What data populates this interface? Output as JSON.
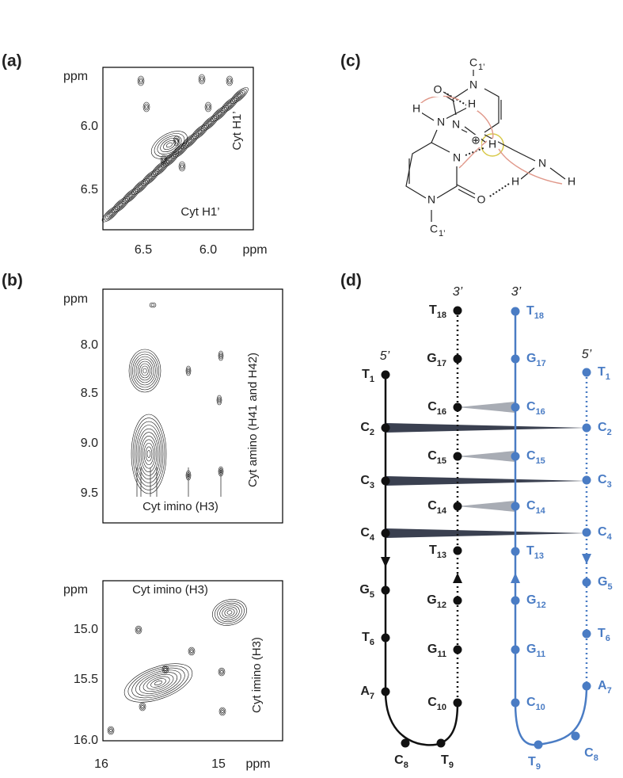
{
  "panels": {
    "a": {
      "label": "(a)",
      "y_unit": "ppm",
      "yticks": [
        "6.0",
        "6.5"
      ],
      "xticks": [
        "6.5",
        "6.0"
      ],
      "x_unit": "ppm",
      "x_annotation": "Cyt H1’",
      "y_annotation": "Cyt H1’"
    },
    "b": {
      "label": "(b)",
      "top": {
        "y_unit": "ppm",
        "yticks": [
          "8.0",
          "8.5",
          "9.0",
          "9.5"
        ],
        "x_annotation": "Cyt imino (H3)",
        "y_annotation": "Cyt amino (H41 and H42)"
      },
      "bottom": {
        "y_unit": "ppm",
        "yticks": [
          "15.0",
          "15.5",
          "16.0"
        ],
        "xticks": [
          "16",
          "15"
        ],
        "x_unit": "ppm",
        "x_annotation": "Cyt imino (H3)",
        "y_annotation": "Cyt imino (H3)"
      }
    },
    "c": {
      "label": "(c)",
      "atoms": [
        {
          "text": "C",
          "sub": "1’"
        },
        {
          "text": "O"
        },
        {
          "text": "N"
        },
        {
          "text": "N"
        },
        {
          "text": "⊕"
        },
        {
          "text": "H"
        },
        {
          "text": "N"
        },
        {
          "text": "H"
        },
        {
          "text": "H"
        },
        {
          "text": "N"
        },
        {
          "text": "N"
        },
        {
          "text": "H"
        },
        {
          "text": "H"
        },
        {
          "text": "O"
        },
        {
          "text": "N"
        },
        {
          "text": "C",
          "sub": "1’"
        }
      ]
    },
    "d": {
      "label": "(d)",
      "strands": [
        {
          "end_label": "5’",
          "nucleotides": [
            {
              "base": "T",
              "num": "1"
            },
            {
              "base": "C",
              "num": "2"
            },
            {
              "base": "C",
              "num": "3"
            },
            {
              "base": "C",
              "num": "4"
            },
            {
              "base": "G",
              "num": "5"
            },
            {
              "base": "T",
              "num": "6"
            },
            {
              "base": "A",
              "num": "7"
            },
            {
              "base": "C",
              "num": "8"
            }
          ]
        },
        {
          "end_label": "3’",
          "nucleotides": [
            {
              "base": "T",
              "num": "18"
            },
            {
              "base": "G",
              "num": "17"
            },
            {
              "base": "C",
              "num": "16"
            },
            {
              "base": "C",
              "num": "15"
            },
            {
              "base": "C",
              "num": "14"
            },
            {
              "base": "T",
              "num": "13"
            },
            {
              "base": "G",
              "num": "12"
            },
            {
              "base": "G",
              "num": "11"
            },
            {
              "base": "C",
              "num": "10"
            },
            {
              "base": "T",
              "num": "9"
            }
          ]
        },
        {
          "end_label": "3’",
          "nucleotides": [
            {
              "base": "T",
              "num": "18"
            },
            {
              "base": "G",
              "num": "17"
            },
            {
              "base": "C",
              "num": "16"
            },
            {
              "base": "C",
              "num": "15"
            },
            {
              "base": "C",
              "num": "14"
            },
            {
              "base": "T",
              "num": "13"
            },
            {
              "base": "G",
              "num": "12"
            },
            {
              "base": "G",
              "num": "11"
            },
            {
              "base": "C",
              "num": "10"
            },
            {
              "base": "T",
              "num": "9"
            }
          ]
        },
        {
          "end_label": "5’",
          "nucleotides": [
            {
              "base": "T",
              "num": "1"
            },
            {
              "base": "C",
              "num": "2"
            },
            {
              "base": "C",
              "num": "3"
            },
            {
              "base": "C",
              "num": "4"
            },
            {
              "base": "G",
              "num": "5"
            },
            {
              "base": "T",
              "num": "6"
            },
            {
              "base": "A",
              "num": "7"
            },
            {
              "base": "C",
              "num": "8"
            }
          ]
        }
      ]
    }
  }
}
